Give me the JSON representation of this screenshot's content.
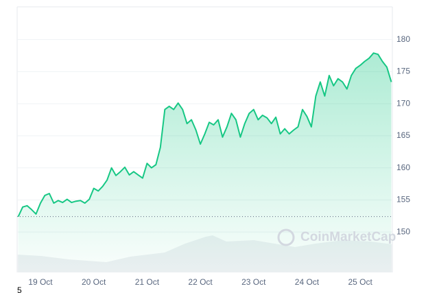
{
  "chart_data": {
    "type": "line",
    "categories": [
      null,
      null,
      null,
      null,
      null,
      "19 Oct",
      null,
      null,
      null,
      null,
      null,
      null,
      null,
      null,
      null,
      null,
      null,
      "20 Oct",
      null,
      null,
      null,
      null,
      null,
      null,
      null,
      null,
      null,
      null,
      null,
      "21 Oct",
      null,
      null,
      null,
      null,
      null,
      null,
      null,
      null,
      null,
      null,
      null,
      "22 Oct",
      null,
      null,
      null,
      null,
      null,
      null,
      null,
      null,
      null,
      null,
      null,
      "23 Oct",
      null,
      null,
      null,
      null,
      null,
      null,
      null,
      null,
      null,
      null,
      null,
      "24 Oct",
      null,
      null,
      null,
      null,
      null,
      null,
      null,
      null,
      null,
      null,
      null,
      "25 Oct",
      null,
      null,
      null,
      null,
      null,
      null,
      null
    ],
    "values": [
      152.4,
      153.9,
      154.1,
      153.5,
      152.8,
      154.5,
      155.7,
      156.0,
      154.5,
      154.9,
      154.6,
      155.1,
      154.6,
      154.8,
      154.9,
      154.5,
      155.1,
      156.8,
      156.4,
      157.1,
      158.1,
      160.0,
      158.8,
      159.4,
      160.1,
      158.9,
      159.4,
      158.9,
      158.4,
      160.7,
      160.0,
      160.5,
      163.2,
      169.1,
      169.6,
      169.1,
      170.1,
      169.1,
      166.9,
      167.5,
      165.9,
      163.7,
      165.3,
      167.1,
      166.7,
      167.5,
      164.8,
      166.4,
      168.5,
      167.5,
      164.8,
      166.9,
      168.5,
      169.1,
      167.5,
      168.2,
      167.8,
      166.9,
      167.9,
      165.3,
      166.1,
      165.3,
      165.9,
      166.4,
      169.1,
      168.0,
      166.4,
      171.2,
      173.4,
      171.2,
      174.4,
      172.8,
      173.9,
      173.4,
      172.3,
      174.4,
      175.5,
      176.0,
      176.6,
      177.1,
      177.9,
      177.7,
      176.6,
      175.7,
      173.4
    ],
    "color": "#16c784",
    "reference_line": 152.4,
    "ylim": [
      143.7,
      185.1
    ],
    "yticks": [
      150,
      155,
      160,
      165,
      170,
      175,
      180
    ],
    "grid": true,
    "watermark": "CoinMarketCap",
    "corner_text": "5"
  }
}
